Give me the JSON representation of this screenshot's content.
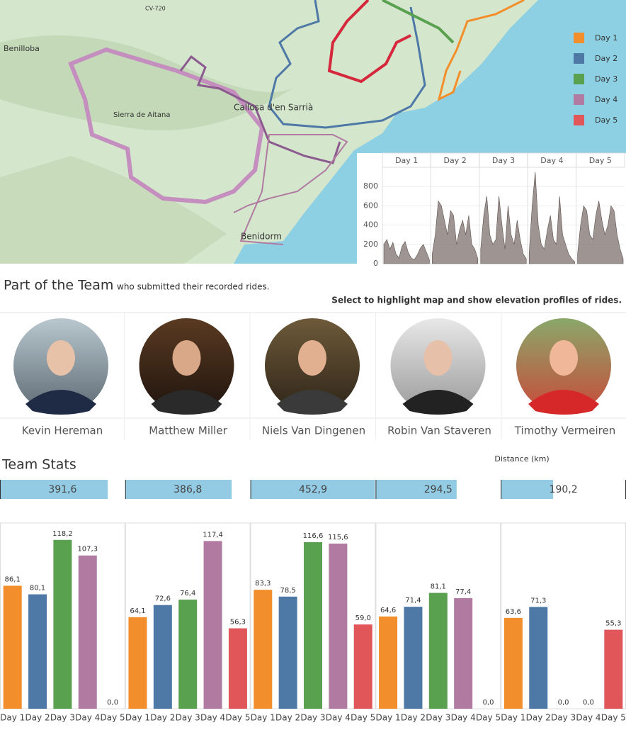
{
  "map": {
    "labels": [
      "CV-720",
      "Benilloba",
      "Sierra de Aitana",
      "Callosa d'en Sarrià",
      "Benidorm"
    ],
    "legend": [
      {
        "label": "Day 1",
        "color": "#f28e2b"
      },
      {
        "label": "Day 2",
        "color": "#4e79a7"
      },
      {
        "label": "Day 3",
        "color": "#59a14f"
      },
      {
        "label": "Day 4",
        "color": "#b07aa1"
      },
      {
        "label": "Day 5",
        "color": "#e15759"
      }
    ]
  },
  "team": {
    "title": "Part of the Team",
    "subtitle": "who submitted their recorded rides.",
    "instruction": "Select to highlight map and show elevation profiles of rides.",
    "members": [
      "Kevin Hereman",
      "Matthew Miller",
      "Niels Van Dingenen",
      "Robin Van Staveren",
      "Timothy Vermeiren"
    ],
    "stats_title": "Team Stats"
  },
  "chart_data": [
    {
      "type": "area",
      "color": "#7d716e",
      "ylim": [
        0,
        1000
      ],
      "yticks": [
        0,
        200,
        400,
        600,
        800
      ],
      "panels": [
        {
          "title": "Day 1",
          "values": [
            200,
            250,
            150,
            220,
            100,
            60,
            180,
            230,
            120,
            60,
            40,
            90,
            160,
            200,
            120,
            40
          ]
        },
        {
          "title": "Day 2",
          "values": [
            100,
            300,
            650,
            600,
            450,
            300,
            550,
            500,
            200,
            350,
            450,
            300,
            500,
            200,
            150,
            50
          ]
        },
        {
          "title": "Day 3",
          "values": [
            150,
            500,
            700,
            300,
            200,
            250,
            700,
            400,
            150,
            600,
            300,
            200,
            450,
            250,
            100,
            50
          ]
        },
        {
          "title": "Day 4",
          "values": [
            100,
            600,
            950,
            400,
            200,
            150,
            350,
            500,
            250,
            200,
            700,
            300,
            200,
            100,
            50,
            20
          ]
        },
        {
          "title": "Day 5",
          "values": [
            100,
            400,
            600,
            550,
            300,
            250,
            500,
            650,
            450,
            300,
            400,
            600,
            550,
            300,
            150,
            50
          ]
        }
      ]
    },
    {
      "type": "hbar",
      "title": "Distance (km)",
      "color": "#92cbe3",
      "xlim": [
        0,
        455
      ],
      "values": [
        391.6,
        386.8,
        452.9,
        294.5,
        190.2
      ],
      "value_labels": [
        "391,6",
        "386,8",
        "452,9",
        "294,5",
        "190,2"
      ]
    },
    {
      "type": "bar",
      "categories": [
        "Day 1",
        "Day 2",
        "Day 3",
        "Day 4",
        "Day 5"
      ],
      "colors": [
        "#f28e2b",
        "#4e79a7",
        "#59a14f",
        "#b07aa1",
        "#e15759"
      ],
      "ylim": [
        0,
        130
      ],
      "values": [
        86.1,
        80.1,
        118.2,
        107.3,
        0
      ],
      "value_labels": [
        "86,1",
        "80,1",
        "118,2",
        "107,3",
        "0,0"
      ]
    },
    {
      "type": "bar",
      "categories": [
        "Day 1",
        "Day 2",
        "Day 3",
        "Day 4",
        "Day 5"
      ],
      "colors": [
        "#f28e2b",
        "#4e79a7",
        "#59a14f",
        "#b07aa1",
        "#e15759"
      ],
      "ylim": [
        0,
        130
      ],
      "values": [
        64.1,
        72.6,
        76.4,
        117.4,
        56.3
      ],
      "value_labels": [
        "64,1",
        "72,6",
        "76,4",
        "117,4",
        "56,3"
      ]
    },
    {
      "type": "bar",
      "categories": [
        "Day 1",
        "Day 2",
        "Day 3",
        "Day 4",
        "Day 5"
      ],
      "colors": [
        "#f28e2b",
        "#4e79a7",
        "#59a14f",
        "#b07aa1",
        "#e15759"
      ],
      "ylim": [
        0,
        130
      ],
      "values": [
        83.3,
        78.5,
        116.6,
        115.6,
        59.0
      ],
      "value_labels": [
        "83,3",
        "78,5",
        "116,6",
        "115,6",
        "59,0"
      ]
    },
    {
      "type": "bar",
      "categories": [
        "Day 1",
        "Day 2",
        "Day 3",
        "Day 4",
        "Day 5"
      ],
      "colors": [
        "#f28e2b",
        "#4e79a7",
        "#59a14f",
        "#b07aa1",
        "#e15759"
      ],
      "ylim": [
        0,
        130
      ],
      "values": [
        64.6,
        71.4,
        81.1,
        77.4,
        0
      ],
      "value_labels": [
        "64,6",
        "71,4",
        "81,1",
        "77,4",
        "0,0"
      ]
    },
    {
      "type": "bar",
      "categories": [
        "Day 1",
        "Day 2",
        "Day 3",
        "Day 4",
        "Day 5"
      ],
      "colors": [
        "#f28e2b",
        "#4e79a7",
        "#59a14f",
        "#b07aa1",
        "#e15759"
      ],
      "ylim": [
        0,
        130
      ],
      "values": [
        63.6,
        71.3,
        0,
        0,
        55.3
      ],
      "value_labels": [
        "63,6",
        "71,3",
        "0,0",
        "0,0",
        "55,3"
      ]
    }
  ]
}
